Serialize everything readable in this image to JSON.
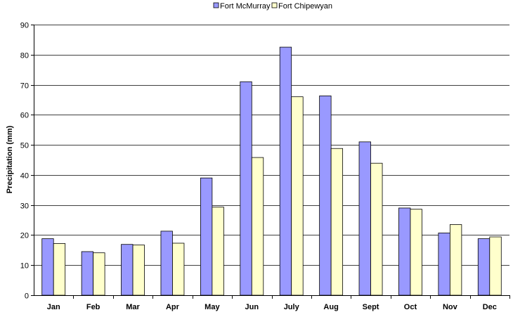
{
  "chart_data": {
    "type": "bar",
    "title": "",
    "xlabel": "",
    "ylabel": "Precipitation (mm)",
    "ylim": [
      0,
      90
    ],
    "yticks": [
      0,
      10,
      20,
      30,
      40,
      50,
      60,
      70,
      80,
      90
    ],
    "grid": true,
    "legend_position": "top-center",
    "categories": [
      "Jan",
      "Feb",
      "Mar",
      "Apr",
      "May",
      "Jun",
      "July",
      "Aug",
      "Sept",
      "Oct",
      "Nov",
      "Dec"
    ],
    "series": [
      {
        "name": "Fort McMurray",
        "color": "#9999ff",
        "values": [
          18.8,
          14.5,
          16.9,
          21.3,
          39.0,
          71.0,
          82.5,
          66.3,
          51.0,
          29.0,
          20.7,
          18.8
        ]
      },
      {
        "name": "Fort Chipewyan",
        "color": "#ffffcc",
        "values": [
          17.2,
          14.1,
          16.7,
          17.3,
          29.3,
          45.8,
          66.0,
          48.8,
          43.9,
          28.6,
          23.5,
          19.4
        ]
      }
    ]
  }
}
